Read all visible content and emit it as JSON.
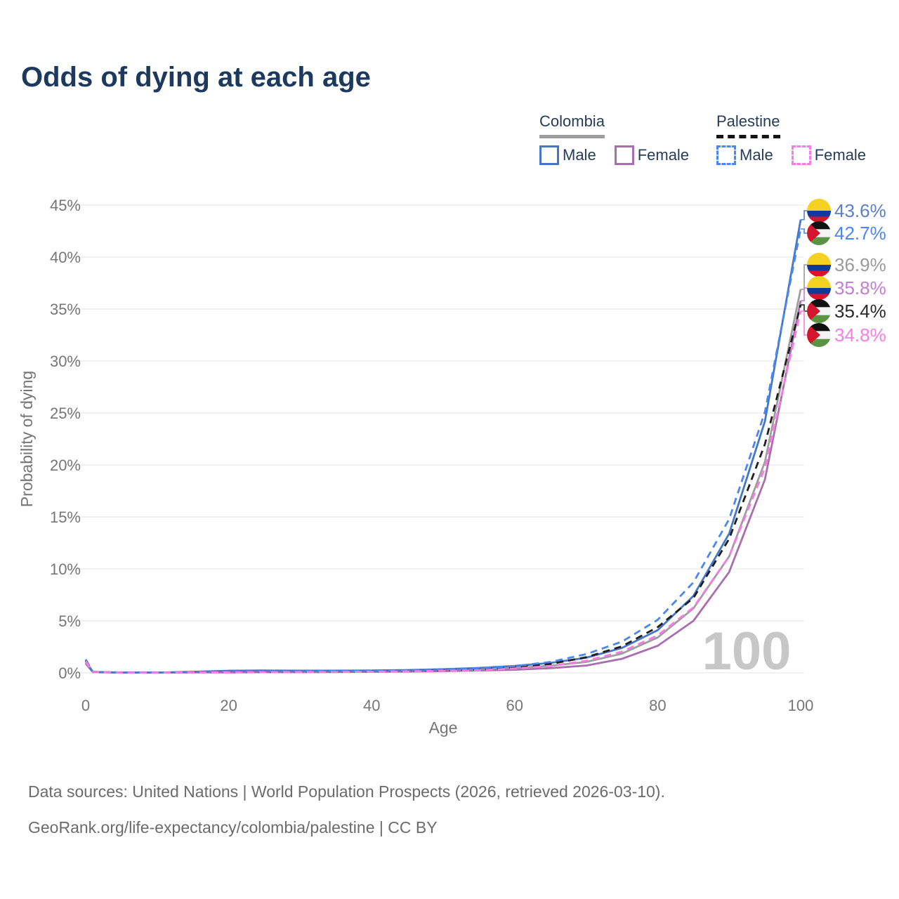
{
  "title": "Odds of dying at each age",
  "watermark": "100",
  "legend": {
    "groups": [
      {
        "country": "Colombia",
        "line_style": "solid",
        "underline_color": "#9e9e9e",
        "items": [
          {
            "label": "Male",
            "key": "colombia-male"
          },
          {
            "label": "Female",
            "key": "colombia-female"
          }
        ]
      },
      {
        "country": "Palestine",
        "line_style": "dashed",
        "underline_color": "#141414",
        "items": [
          {
            "label": "Male",
            "key": "palestine-male"
          },
          {
            "label": "Female",
            "key": "palestine-female"
          }
        ]
      }
    ]
  },
  "footer": {
    "line1": "Data sources: United Nations | World Population Prospects (2026, retrieved 2026-03-10).",
    "line2": "GeoRank.org/life-expectancy/colombia/palestine | CC BY"
  },
  "chart_data": {
    "type": "line",
    "title": "Odds of dying at each age",
    "xlabel": "Age",
    "ylabel": "Probability of dying",
    "xlim": [
      0,
      100
    ],
    "ylim": [
      0,
      45
    ],
    "grid": "horizontal",
    "legend_position": "top-right",
    "xticks": [
      "0",
      "20",
      "40",
      "60",
      "80",
      "100"
    ],
    "yticks": [
      "0%",
      "5%",
      "10%",
      "15%",
      "20%",
      "25%",
      "30%",
      "35%",
      "40%",
      "45%"
    ],
    "x": [
      0,
      1,
      5,
      10,
      15,
      20,
      25,
      30,
      35,
      40,
      45,
      50,
      55,
      60,
      65,
      70,
      75,
      80,
      85,
      90,
      95,
      100
    ],
    "series": [
      {
        "key": "colombia-total",
        "name": "Colombia",
        "country": "Colombia",
        "sex": "Both",
        "flag": "colombia",
        "dash": "solid",
        "color": "#9e9e9e",
        "label_color": "#9a9a9a",
        "end_label": "36.9%",
        "end_value": 36.9,
        "values": [
          1.0,
          0.08,
          0.025,
          0.025,
          0.07,
          0.12,
          0.14,
          0.14,
          0.14,
          0.16,
          0.19,
          0.25,
          0.33,
          0.47,
          0.68,
          1.05,
          1.85,
          3.4,
          6.2,
          11.2,
          20.3,
          36.9
        ]
      },
      {
        "key": "colombia-female",
        "name": "Colombia Female",
        "country": "Colombia",
        "sex": "Female",
        "flag": "colombia",
        "dash": "solid",
        "color": "#a76fad",
        "label_color": "#c07fd2",
        "end_label": "35.8%",
        "end_value": 35.8,
        "values": [
          0.9,
          0.07,
          0.02,
          0.02,
          0.04,
          0.05,
          0.06,
          0.07,
          0.08,
          0.1,
          0.12,
          0.16,
          0.22,
          0.3,
          0.45,
          0.7,
          1.35,
          2.6,
          5.0,
          9.7,
          18.6,
          35.8
        ]
      },
      {
        "key": "colombia-male",
        "name": "Colombia Male",
        "country": "Colombia",
        "sex": "Male",
        "flag": "colombia",
        "dash": "solid",
        "color": "#4577c6",
        "label_color": "#5b80c9",
        "end_label": "43.6%",
        "end_value": 43.6,
        "values": [
          1.1,
          0.09,
          0.03,
          0.03,
          0.1,
          0.2,
          0.22,
          0.21,
          0.21,
          0.23,
          0.27,
          0.35,
          0.47,
          0.66,
          0.95,
          1.45,
          2.4,
          4.1,
          7.4,
          13.4,
          24.2,
          43.6
        ]
      },
      {
        "key": "palestine-total",
        "name": "Palestine",
        "country": "Palestine",
        "sex": "Both",
        "flag": "palestine",
        "dash": "dashed",
        "color": "#1f1f1f",
        "label_color": "#2a2a2a",
        "end_label": "35.4%",
        "end_value": 35.4,
        "values": [
          1.2,
          0.09,
          0.035,
          0.025,
          0.05,
          0.08,
          0.09,
          0.1,
          0.12,
          0.14,
          0.18,
          0.25,
          0.35,
          0.55,
          0.85,
          1.5,
          2.55,
          4.4,
          7.2,
          12.9,
          22.0,
          35.4
        ]
      },
      {
        "key": "palestine-male",
        "name": "Palestine Male",
        "country": "Palestine",
        "sex": "Male",
        "flag": "palestine",
        "dash": "dashed",
        "color": "#4b87f0",
        "label_color": "#4b87f0",
        "end_label": "42.7%",
        "end_value": 42.7,
        "values": [
          1.3,
          0.1,
          0.04,
          0.03,
          0.07,
          0.11,
          0.12,
          0.13,
          0.15,
          0.18,
          0.23,
          0.32,
          0.45,
          0.65,
          1.05,
          1.8,
          3.0,
          5.1,
          8.7,
          14.8,
          25.1,
          42.7
        ]
      },
      {
        "key": "palestine-female",
        "name": "Palestine Female",
        "country": "Palestine",
        "sex": "Female",
        "flag": "palestine",
        "dash": "dashed",
        "color": "#f87ce3",
        "label_color": "#f87ce3",
        "end_label": "34.8%",
        "end_value": 34.8,
        "values": [
          1.1,
          0.08,
          0.03,
          0.02,
          0.04,
          0.05,
          0.06,
          0.08,
          0.09,
          0.11,
          0.14,
          0.18,
          0.26,
          0.42,
          0.66,
          1.16,
          2.04,
          3.6,
          6.3,
          11.2,
          19.7,
          34.8
        ]
      }
    ]
  }
}
